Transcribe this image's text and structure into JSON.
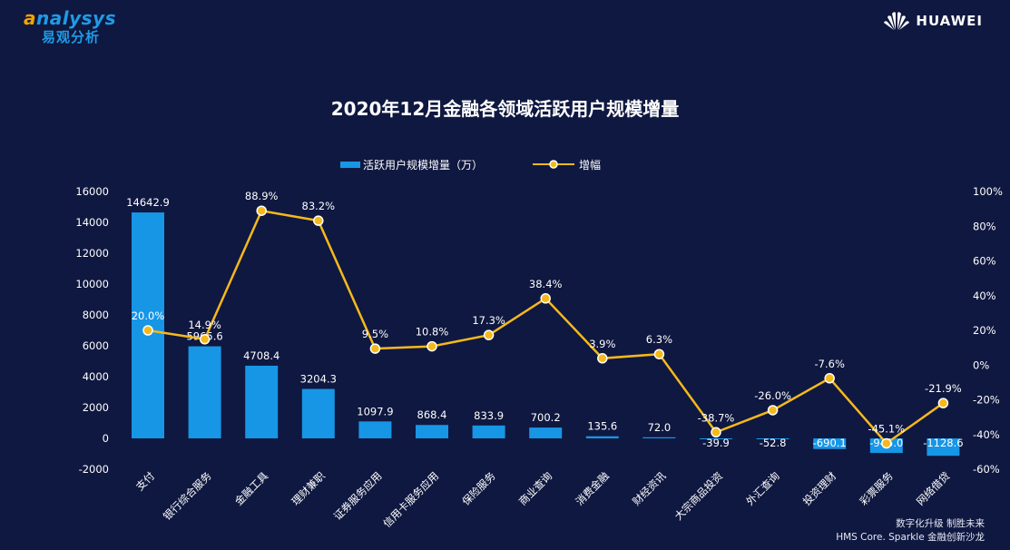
{
  "header": {
    "logo_text": "nalysys",
    "logo_initial": "a",
    "logo_cn": "易观分析",
    "brand": "HUAWEI"
  },
  "footer": {
    "line1": "数字化升级  制胜未来",
    "line2": "HMS Core. Sparkle 金融创新沙龙"
  },
  "colors": {
    "bar": "#1796e6",
    "line": "#f6b91b",
    "background": "#0f1840"
  },
  "chart_data": {
    "type": "bar",
    "title": "2020年12月金融各领域活跃用户规模增量",
    "categories": [
      "支付",
      "银行综合服务",
      "金融工具",
      "理财兼职",
      "证券服务应用",
      "信用卡服务应用",
      "保险服务",
      "商业查询",
      "消费金融",
      "财经资讯",
      "大宗商品投资",
      "外汇查询",
      "投资理财",
      "彩票服务",
      "网络借贷"
    ],
    "series": [
      {
        "name": "活跃用户规模增量（万）",
        "type": "bar",
        "axis": "left",
        "values": [
          14642.9,
          5965.6,
          4708.4,
          3204.3,
          1097.9,
          868.4,
          833.9,
          700.2,
          135.6,
          72.0,
          -39.9,
          -52.8,
          -690.1,
          -945.0,
          -1128.6
        ],
        "labels": [
          "14642.9",
          "5965.6",
          "4708.4",
          "3204.3",
          "1097.9",
          "868.4",
          "833.9",
          "700.2",
          "135.6",
          "72.0",
          "-39.9",
          "-52.8",
          "-690.1",
          "-945.0",
          "-1128.6"
        ]
      },
      {
        "name": "增幅",
        "type": "line",
        "axis": "right",
        "values": [
          20.0,
          14.9,
          88.9,
          83.2,
          9.5,
          10.8,
          17.3,
          38.4,
          3.9,
          6.3,
          -38.7,
          -26.0,
          -7.6,
          -45.1,
          -21.9
        ],
        "labels": [
          "20.0%",
          "14.9%",
          "88.9%",
          "83.2%",
          "9.5%",
          "10.8%",
          "17.3%",
          "38.4%",
          "3.9%",
          "6.3%",
          "-38.7%",
          "-26.0%",
          "-7.6%",
          "-45.1%",
          "-21.9%"
        ]
      }
    ],
    "y_left": {
      "min": -2000,
      "max": 16000,
      "ticks": [
        -2000,
        0,
        2000,
        4000,
        6000,
        8000,
        10000,
        12000,
        14000,
        16000
      ]
    },
    "y_right": {
      "min": -60,
      "max": 100,
      "ticks": [
        "-60%",
        "-40%",
        "-20%",
        "0%",
        "20%",
        "40%",
        "60%",
        "80%",
        "100%"
      ],
      "tick_values": [
        -60,
        -40,
        -20,
        0,
        20,
        40,
        60,
        80,
        100
      ]
    },
    "legend_position": "top-center"
  }
}
